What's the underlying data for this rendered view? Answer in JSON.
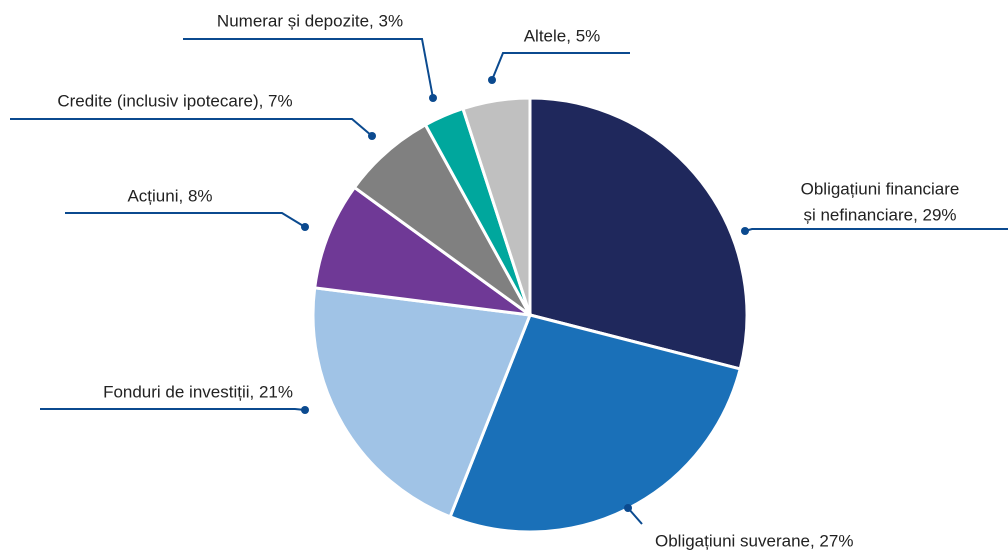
{
  "chart_data": {
    "type": "pie",
    "categories": [
      [
        "Obligațiuni financiare",
        "și nefinanciare, 29%"
      ],
      [
        "Obligațiuni suverane, 27%"
      ],
      [
        "Fonduri de investiții, 21%"
      ],
      [
        "Acțiuni, 8%"
      ],
      [
        "Credite (inclusiv ipotecare), 7%"
      ],
      [
        "Numerar și depozite, 3%"
      ],
      [
        "Altele, 5%"
      ]
    ],
    "values": [
      29,
      27,
      21,
      8,
      7,
      3,
      5
    ],
    "colors": [
      "#1f285c",
      "#1a70b8",
      "#a0c3e6",
      "#6f3996",
      "#808080",
      "#00a79d",
      "#c0c0c0"
    ],
    "leader_color": "#0b4a8f"
  }
}
